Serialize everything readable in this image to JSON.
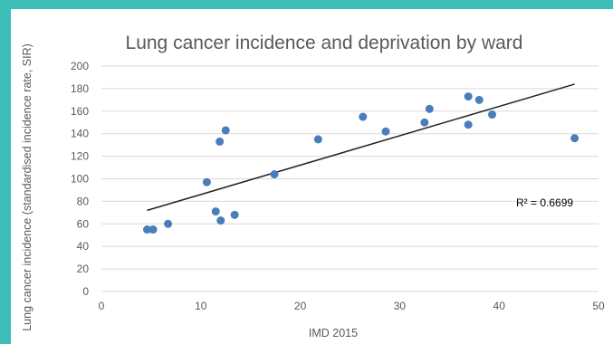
{
  "chart_data": {
    "type": "scatter",
    "title": "Lung cancer incidence and deprivation by ward",
    "xlabel": "IMD 2015",
    "ylabel": "Lung cancer incidence (standardised incidence rate, SIR)",
    "xlim": [
      0,
      50
    ],
    "ylim": [
      0,
      200
    ],
    "xticks": [
      "0",
      "10",
      "20",
      "30",
      "40",
      "50"
    ],
    "yticks": [
      "0",
      "20",
      "40",
      "60",
      "80",
      "100",
      "120",
      "140",
      "160",
      "180",
      "200"
    ],
    "grid": "horizontal",
    "legend": "none",
    "marker_color": "#4a7ebb",
    "points": [
      {
        "x": 4.6,
        "y": 55
      },
      {
        "x": 5.2,
        "y": 55
      },
      {
        "x": 6.7,
        "y": 60
      },
      {
        "x": 10.6,
        "y": 97
      },
      {
        "x": 11.5,
        "y": 71
      },
      {
        "x": 11.9,
        "y": 133
      },
      {
        "x": 12.0,
        "y": 63
      },
      {
        "x": 12.5,
        "y": 143
      },
      {
        "x": 13.4,
        "y": 68
      },
      {
        "x": 17.4,
        "y": 104
      },
      {
        "x": 21.8,
        "y": 135
      },
      {
        "x": 26.3,
        "y": 155
      },
      {
        "x": 28.6,
        "y": 142
      },
      {
        "x": 32.5,
        "y": 150
      },
      {
        "x": 33.0,
        "y": 162
      },
      {
        "x": 36.9,
        "y": 173
      },
      {
        "x": 36.9,
        "y": 148
      },
      {
        "x": 38.0,
        "y": 170
      },
      {
        "x": 39.3,
        "y": 157
      },
      {
        "x": 47.6,
        "y": 136
      }
    ],
    "trendline": {
      "type": "linear",
      "from": {
        "x": 4.6,
        "y": 72
      },
      "to": {
        "x": 47.6,
        "y": 184
      }
    },
    "annotation": "R² = 0.6699"
  }
}
